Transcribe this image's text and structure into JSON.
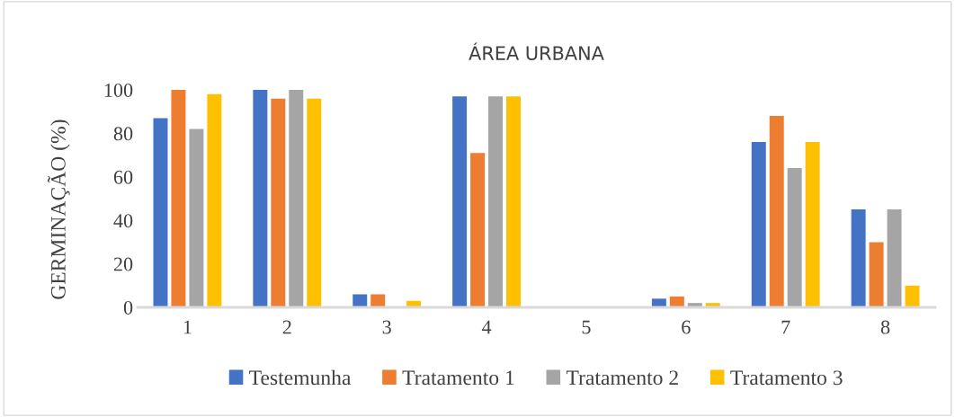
{
  "chart_data": {
    "type": "bar",
    "title": "ÁREA URBANA",
    "ylabel": "GERMINAÇÃO (%)",
    "categories": [
      "1",
      "2",
      "3",
      "4",
      "5",
      "6",
      "7",
      "8"
    ],
    "series": [
      {
        "name": "Testemunha",
        "color": "#4472c4",
        "values": [
          87,
          100,
          6,
          97,
          0,
          4,
          76,
          45
        ]
      },
      {
        "name": "Tratamento 1",
        "color": "#ed7d31",
        "values": [
          100,
          96,
          6,
          71,
          0,
          5,
          88,
          30
        ]
      },
      {
        "name": "Tratamento 2",
        "color": "#a5a5a5",
        "values": [
          82,
          100,
          0,
          97,
          0,
          2,
          64,
          45
        ]
      },
      {
        "name": "Tratamento 3",
        "color": "#ffc000",
        "values": [
          98,
          96,
          3,
          97,
          0,
          2,
          76,
          10
        ]
      }
    ],
    "ylim": [
      0,
      100
    ],
    "yticks": [
      0,
      20,
      40,
      60,
      80,
      100
    ],
    "grid": false,
    "legend": "bottom"
  }
}
